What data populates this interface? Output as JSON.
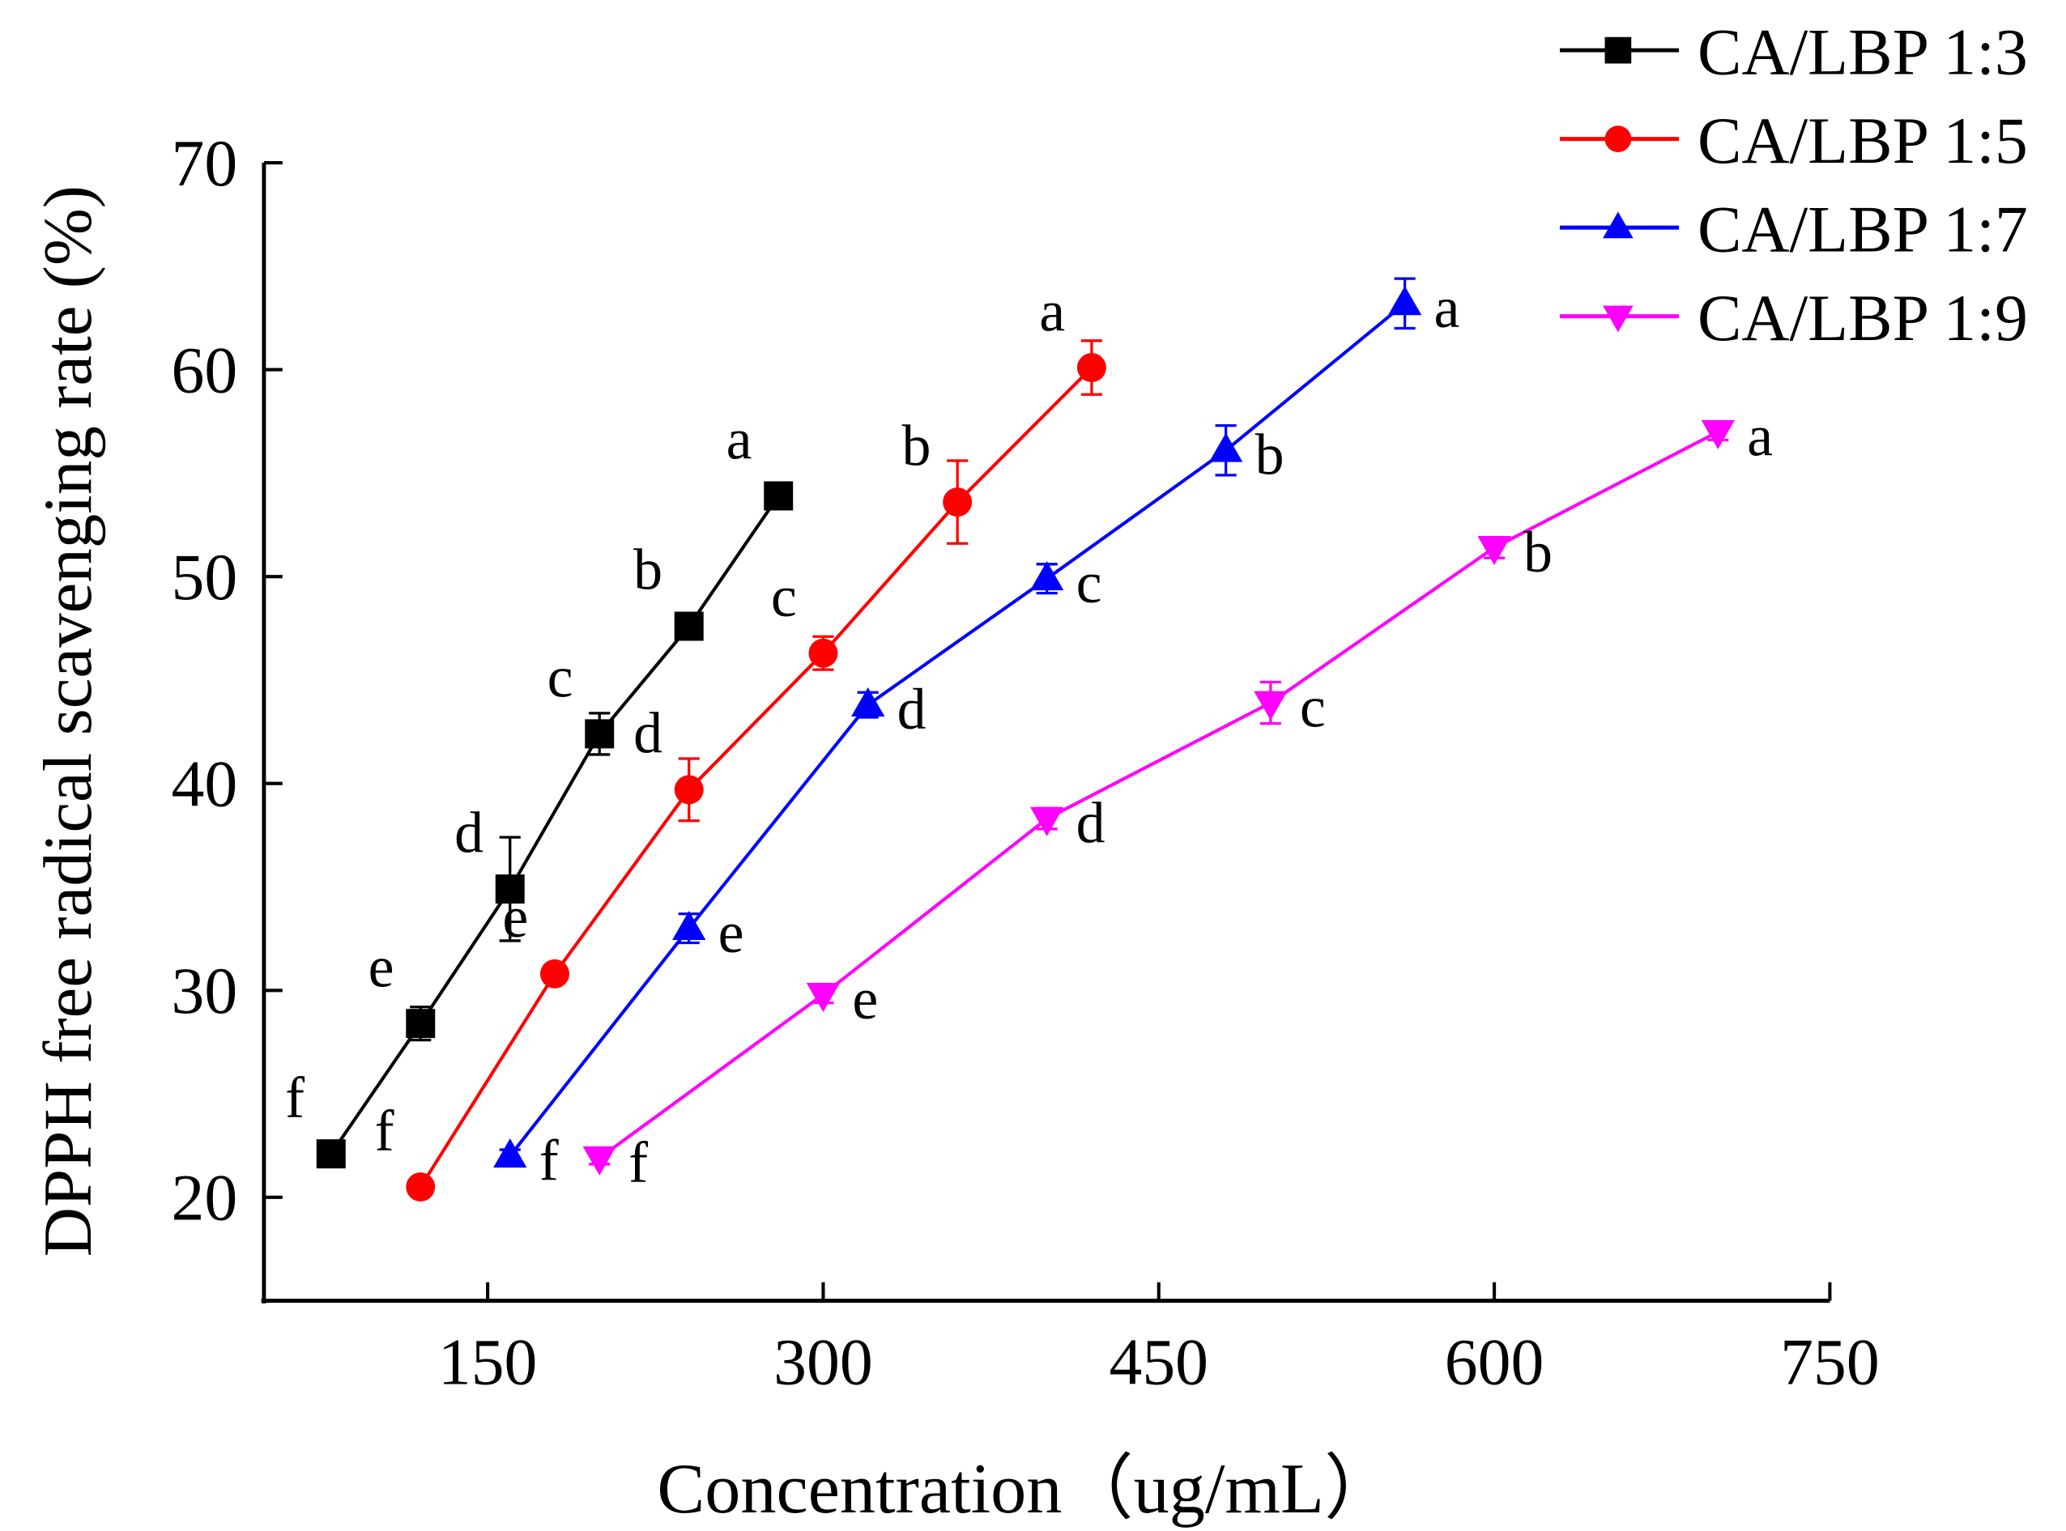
{
  "chart_data": {
    "type": "line",
    "title": "",
    "xlabel": "Concentration（ug/mL）",
    "ylabel": "DPPH free radical scavenging rate (%)",
    "xlim": [
      50,
      750
    ],
    "ylim": [
      15,
      70
    ],
    "xticks": [
      150,
      300,
      450,
      600,
      750
    ],
    "yticks": [
      20,
      30,
      40,
      50,
      60,
      70
    ],
    "grid": false,
    "legend_position": "top-right",
    "series": [
      {
        "name": "CA/LBP 1:3",
        "color": "#000000",
        "marker": "square",
        "label_side": "left",
        "x": [
          80,
          120,
          160,
          200,
          240,
          280
        ],
        "y": [
          22.1,
          28.4,
          34.9,
          42.4,
          47.6,
          53.9
        ],
        "err": [
          0.3,
          0.8,
          2.5,
          1.0,
          0.6,
          0.6
        ],
        "letters": [
          "f",
          "e",
          "d",
          "c",
          "b",
          "a"
        ]
      },
      {
        "name": "CA/LBP 1:5",
        "color": "#ff0000",
        "marker": "circle",
        "label_side": "left",
        "x": [
          120,
          180,
          240,
          300,
          360,
          420
        ],
        "y": [
          20.5,
          30.8,
          39.7,
          46.3,
          53.6,
          60.1
        ],
        "err": [
          0.3,
          0.3,
          1.5,
          0.8,
          2.0,
          1.3
        ],
        "letters": [
          "f",
          "e",
          "d",
          "c",
          "b",
          "a"
        ]
      },
      {
        "name": "CA/LBP 1:7",
        "color": "#0000ff",
        "marker": "triangle-up",
        "label_side": "right",
        "x": [
          160,
          240,
          320,
          400,
          480,
          560
        ],
        "y": [
          22.0,
          33.0,
          43.8,
          49.9,
          56.1,
          63.2
        ],
        "err": [
          0.3,
          0.7,
          0.6,
          0.7,
          1.2,
          1.2
        ],
        "letters": [
          "f",
          "e",
          "d",
          "c",
          "b",
          "a"
        ]
      },
      {
        "name": "CA/LBP 1:9",
        "color": "#ff00ff",
        "marker": "triangle-down",
        "label_side": "right",
        "x": [
          200,
          300,
          400,
          500,
          600,
          700
        ],
        "y": [
          21.9,
          29.8,
          38.3,
          43.9,
          51.4,
          57.0
        ],
        "err": [
          0.3,
          0.4,
          0.5,
          1.0,
          0.5,
          0.4
        ],
        "letters": [
          "f",
          "e",
          "d",
          "c",
          "b",
          "a"
        ]
      }
    ]
  }
}
